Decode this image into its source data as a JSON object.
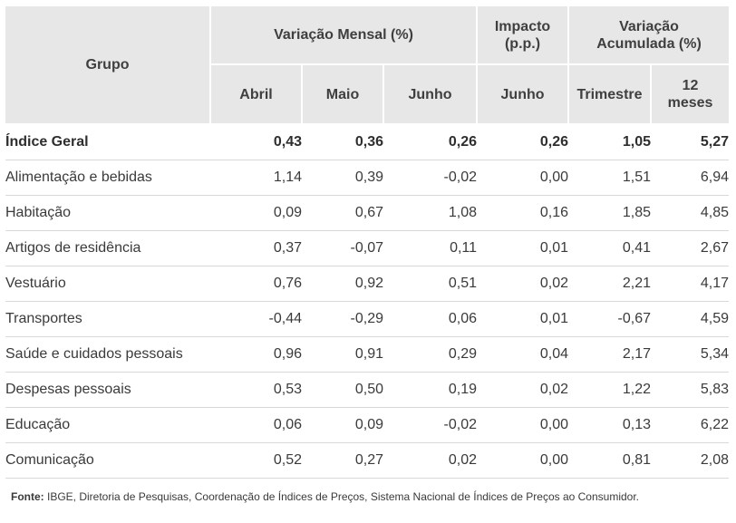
{
  "headers": {
    "grupo": "Grupo",
    "variacao_mensal": "Variação Mensal (%)",
    "impacto": "Impacto (p.p.)",
    "variacao_acumulada": "Variação Acumulada (%)",
    "abril": "Abril",
    "maio": "Maio",
    "junho": "Junho",
    "junho_impacto": "Junho",
    "trimestre": "Trimestre",
    "doze_meses": "12 meses"
  },
  "rows": [
    {
      "grupo": "Índice Geral",
      "abril": "0,43",
      "maio": "0,36",
      "junho": "0,26",
      "impacto": "0,26",
      "trimestre": "1,05",
      "doze_meses": "5,27"
    },
    {
      "grupo": "Alimentação e bebidas",
      "abril": "1,14",
      "maio": "0,39",
      "junho": "-0,02",
      "impacto": "0,00",
      "trimestre": "1,51",
      "doze_meses": "6,94"
    },
    {
      "grupo": "Habitação",
      "abril": "0,09",
      "maio": "0,67",
      "junho": "1,08",
      "impacto": "0,16",
      "trimestre": "1,85",
      "doze_meses": "4,85"
    },
    {
      "grupo": "Artigos de residência",
      "abril": "0,37",
      "maio": "-0,07",
      "junho": "0,11",
      "impacto": "0,01",
      "trimestre": "0,41",
      "doze_meses": "2,67"
    },
    {
      "grupo": "Vestuário",
      "abril": "0,76",
      "maio": "0,92",
      "junho": "0,51",
      "impacto": "0,02",
      "trimestre": "2,21",
      "doze_meses": "4,17"
    },
    {
      "grupo": "Transportes",
      "abril": "-0,44",
      "maio": "-0,29",
      "junho": "0,06",
      "impacto": "0,01",
      "trimestre": "-0,67",
      "doze_meses": "4,59"
    },
    {
      "grupo": "Saúde e cuidados pessoais",
      "abril": "0,96",
      "maio": "0,91",
      "junho": "0,29",
      "impacto": "0,04",
      "trimestre": "2,17",
      "doze_meses": "5,34"
    },
    {
      "grupo": "Despesas pessoais",
      "abril": "0,53",
      "maio": "0,50",
      "junho": "0,19",
      "impacto": "0,02",
      "trimestre": "1,22",
      "doze_meses": "5,83"
    },
    {
      "grupo": "Educação",
      "abril": "0,06",
      "maio": "0,09",
      "junho": "-0,02",
      "impacto": "0,00",
      "trimestre": "0,13",
      "doze_meses": "6,22"
    },
    {
      "grupo": "Comunicação",
      "abril": "0,52",
      "maio": "0,27",
      "junho": "0,02",
      "impacto": "0,00",
      "trimestre": "0,81",
      "doze_meses": "2,08"
    }
  ],
  "source": {
    "label": "Fonte:",
    "text": " IBGE, Diretoria de Pesquisas, Coordenação de Índices de Preços, Sistema  Nacional de Índices de Preços ao Consumidor."
  }
}
